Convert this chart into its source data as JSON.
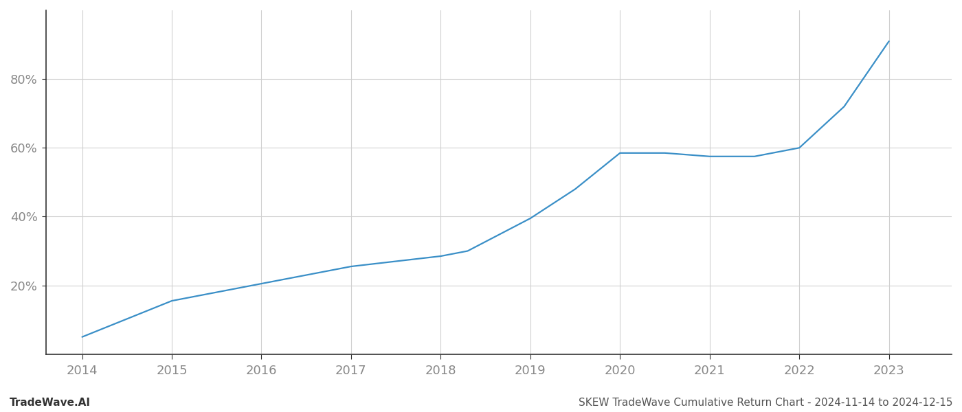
{
  "x_years": [
    2014,
    2015,
    2016,
    2017,
    2018,
    2018.3,
    2019,
    2019.5,
    2020,
    2020.5,
    2021,
    2021.5,
    2022,
    2022.5,
    2023
  ],
  "y_values": [
    0.05,
    0.155,
    0.205,
    0.255,
    0.285,
    0.3,
    0.395,
    0.48,
    0.585,
    0.585,
    0.575,
    0.575,
    0.6,
    0.72,
    0.91
  ],
  "line_color": "#3a8fc7",
  "line_width": 1.6,
  "background_color": "#ffffff",
  "grid_color": "#d0d0d0",
  "yticks": [
    0.2,
    0.4,
    0.6,
    0.8
  ],
  "ytick_labels": [
    "20%",
    "40%",
    "60%",
    "80%"
  ],
  "xlim": [
    2013.6,
    2023.7
  ],
  "ylim": [
    0.0,
    1.0
  ],
  "xticks": [
    2014,
    2015,
    2016,
    2017,
    2018,
    2019,
    2020,
    2021,
    2022,
    2023
  ],
  "footer_left": "TradeWave.AI",
  "footer_right": "SKEW TradeWave Cumulative Return Chart - 2024-11-14 to 2024-12-15",
  "footer_fontsize": 11,
  "tick_fontsize": 13,
  "left_spine_color": "#333333",
  "bottom_spine_color": "#333333",
  "tick_color": "#888888"
}
